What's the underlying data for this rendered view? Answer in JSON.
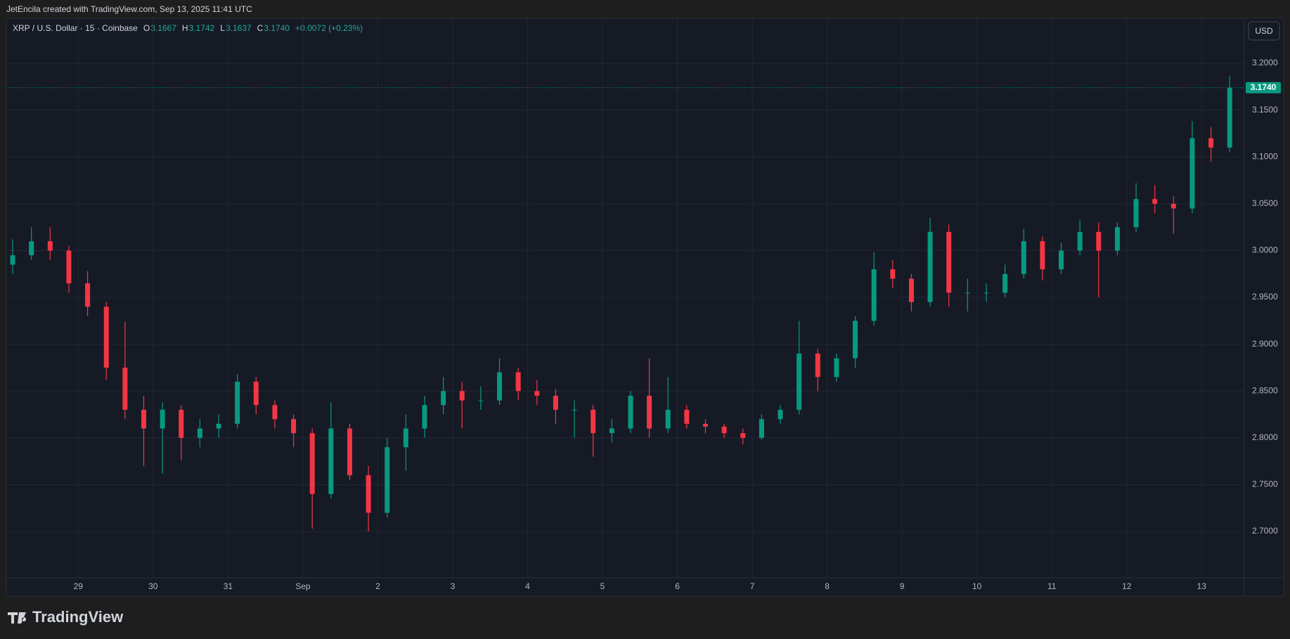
{
  "attribution": "JetEncila created with TradingView.com, Sep 13, 2025 11:41 UTC",
  "brand": "TradingView",
  "chart_data": {
    "type": "candlestick",
    "title": "XRP / U.S. Dollar · 15 · Coinbase",
    "legend_values": [
      {
        "label": "O",
        "value": "3.1667"
      },
      {
        "label": "H",
        "value": "3.1742"
      },
      {
        "label": "L",
        "value": "3.1637"
      },
      {
        "label": "C",
        "value": "3.1740"
      }
    ],
    "change": "+0.0072 (+0.23%)",
    "currency": "USD",
    "up_color": "#089981",
    "down_color": "#f23645",
    "grid": true,
    "last_price": {
      "value": 3.174,
      "label": "3.1740"
    },
    "x": [
      -0.875,
      -0.625,
      -0.375,
      -0.125,
      0.125,
      0.375,
      0.625,
      0.875,
      1.125,
      1.375,
      1.625,
      1.875,
      2.125,
      2.375,
      2.625,
      2.875,
      3.125,
      3.375,
      3.625,
      3.875,
      4.125,
      4.375,
      4.625,
      4.875,
      5.125,
      5.375,
      5.625,
      5.875,
      6.125,
      6.375,
      6.625,
      6.875,
      7.125,
      7.375,
      7.625,
      7.875,
      8.125,
      8.375,
      8.625,
      8.875,
      9.125,
      9.375,
      9.625,
      9.875,
      10.125,
      10.375,
      10.625,
      10.875,
      11.125,
      11.375,
      11.625,
      11.875,
      12.125,
      12.375,
      12.625,
      12.875,
      13.125,
      13.375,
      13.625,
      13.875,
      14.125,
      14.375,
      14.625,
      14.875,
      15.125,
      15.375
    ],
    "open": [
      2.985,
      2.995,
      3.01,
      3.0,
      2.965,
      2.94,
      2.875,
      2.83,
      2.81,
      2.83,
      2.8,
      2.81,
      2.815,
      2.86,
      2.835,
      2.82,
      2.805,
      2.74,
      2.81,
      2.76,
      2.72,
      2.79,
      2.81,
      2.835,
      2.85,
      2.84,
      2.84,
      2.87,
      2.85,
      2.845,
      2.83,
      2.83,
      2.805,
      2.81,
      2.845,
      2.81,
      2.83,
      2.815,
      2.812,
      2.805,
      2.8,
      2.82,
      2.83,
      2.89,
      2.865,
      2.885,
      2.925,
      2.98,
      2.97,
      2.945,
      3.02,
      2.955,
      2.955,
      2.955,
      2.975,
      3.01,
      2.98,
      3.0,
      3.02,
      3.0,
      3.025,
      3.055,
      3.05,
      3.045,
      3.12,
      3.11
    ],
    "high": [
      3.012,
      3.025,
      3.025,
      3.005,
      2.978,
      2.945,
      2.924,
      2.845,
      2.838,
      2.835,
      2.82,
      2.825,
      2.868,
      2.865,
      2.84,
      2.825,
      2.81,
      2.838,
      2.815,
      2.77,
      2.8,
      2.825,
      2.845,
      2.865,
      2.86,
      2.855,
      2.885,
      2.875,
      2.862,
      2.852,
      2.84,
      2.835,
      2.82,
      2.85,
      2.885,
      2.865,
      2.835,
      2.82,
      2.815,
      2.81,
      2.825,
      2.835,
      2.925,
      2.895,
      2.89,
      2.93,
      2.998,
      2.99,
      2.975,
      3.035,
      3.028,
      2.97,
      2.965,
      2.985,
      3.023,
      3.015,
      3.008,
      3.033,
      3.03,
      3.03,
      3.072,
      3.07,
      3.058,
      3.138,
      3.132,
      3.187
    ],
    "low": [
      2.975,
      2.99,
      2.99,
      2.955,
      2.93,
      2.862,
      2.82,
      2.77,
      2.762,
      2.776,
      2.79,
      2.8,
      2.81,
      2.825,
      2.81,
      2.79,
      2.703,
      2.735,
      2.755,
      2.7,
      2.715,
      2.765,
      2.8,
      2.825,
      2.81,
      2.83,
      2.835,
      2.84,
      2.835,
      2.815,
      2.8,
      2.78,
      2.795,
      2.805,
      2.8,
      2.805,
      2.81,
      2.805,
      2.8,
      2.793,
      2.798,
      2.815,
      2.825,
      2.85,
      2.86,
      2.875,
      2.92,
      2.96,
      2.935,
      2.94,
      2.94,
      2.935,
      2.945,
      2.95,
      2.97,
      2.968,
      2.975,
      2.995,
      2.95,
      2.995,
      3.02,
      3.04,
      3.018,
      3.04,
      3.095,
      3.105
    ],
    "close": [
      2.995,
      3.01,
      3.0,
      2.965,
      2.94,
      2.875,
      2.83,
      2.81,
      2.83,
      2.8,
      2.81,
      2.815,
      2.86,
      2.835,
      2.82,
      2.805,
      2.74,
      2.81,
      2.76,
      2.72,
      2.79,
      2.81,
      2.835,
      2.85,
      2.84,
      2.84,
      2.87,
      2.85,
      2.845,
      2.83,
      2.83,
      2.805,
      2.81,
      2.845,
      2.81,
      2.83,
      2.815,
      2.812,
      2.805,
      2.8,
      2.82,
      2.83,
      2.89,
      2.865,
      2.885,
      2.925,
      2.98,
      2.97,
      2.945,
      3.02,
      2.955,
      2.955,
      2.955,
      2.975,
      3.01,
      2.98,
      3.0,
      3.02,
      3.0,
      3.025,
      3.055,
      3.05,
      3.045,
      3.12,
      3.11,
      3.174
    ],
    "xlim": [
      -0.96,
      15.57
    ],
    "xticks": [
      {
        "value": 0,
        "label": "29"
      },
      {
        "value": 1,
        "label": "30"
      },
      {
        "value": 2,
        "label": "31"
      },
      {
        "value": 3,
        "label": "Sep"
      },
      {
        "value": 4,
        "label": "2"
      },
      {
        "value": 5,
        "label": "3"
      },
      {
        "value": 6,
        "label": "4"
      },
      {
        "value": 7,
        "label": "5"
      },
      {
        "value": 8,
        "label": "6"
      },
      {
        "value": 9,
        "label": "7"
      },
      {
        "value": 10,
        "label": "8"
      },
      {
        "value": 11,
        "label": "9"
      },
      {
        "value": 12,
        "label": "10"
      },
      {
        "value": 13,
        "label": "11"
      },
      {
        "value": 14,
        "label": "12"
      },
      {
        "value": 15,
        "label": "13"
      }
    ],
    "ylim": [
      2.6505,
      3.2481
    ],
    "yticks": [
      {
        "value": 2.7,
        "label": "2.7000"
      },
      {
        "value": 2.75,
        "label": "2.7500"
      },
      {
        "value": 2.8,
        "label": "2.8000"
      },
      {
        "value": 2.85,
        "label": "2.8500"
      },
      {
        "value": 2.9,
        "label": "2.9000"
      },
      {
        "value": 2.95,
        "label": "2.9500"
      },
      {
        "value": 3.0,
        "label": "3.0000"
      },
      {
        "value": 3.05,
        "label": "3.0500"
      },
      {
        "value": 3.1,
        "label": "3.1000"
      },
      {
        "value": 3.15,
        "label": "3.1500"
      },
      {
        "value": 3.2,
        "label": "3.2000"
      }
    ]
  }
}
